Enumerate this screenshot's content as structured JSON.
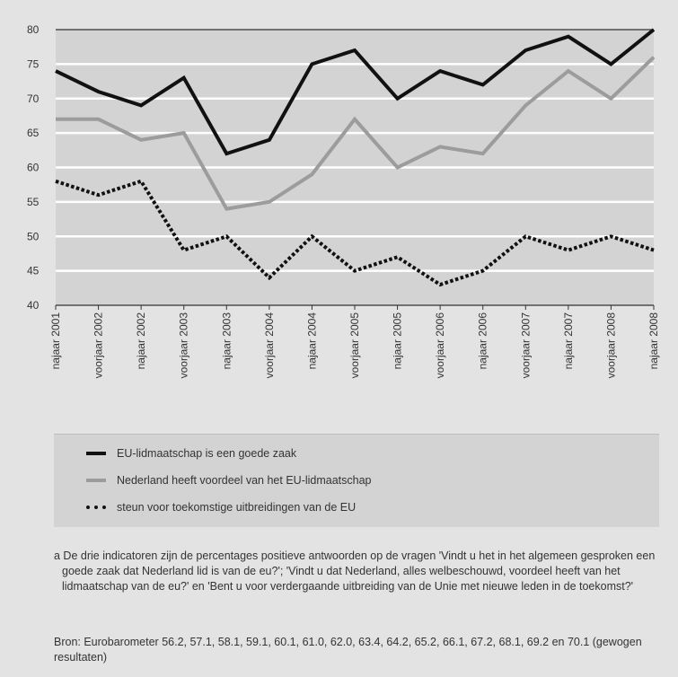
{
  "chart_data": {
    "type": "line",
    "categories": [
      "najaar 2001",
      "voorjaar 2002",
      "najaar 2002",
      "voorjaar 2003",
      "najaar 2003",
      "voorjaar 2004",
      "najaar 2004",
      "voorjaar 2005",
      "najaar 2005",
      "voorjaar 2006",
      "najaar 2006",
      "voorjaar 2007",
      "najaar 2007",
      "voorjaar 2008",
      "najaar 2008"
    ],
    "ylim": [
      40,
      80
    ],
    "yticks": [
      40,
      45,
      50,
      55,
      60,
      65,
      70,
      75,
      80
    ],
    "grid": true,
    "legend_position": "bottom",
    "series": [
      {
        "name": "EU-lidmaatschap is een goede zaak",
        "color": "#111111",
        "style": "solid",
        "values": [
          74,
          71,
          69,
          73,
          62,
          64,
          75,
          77,
          70,
          74,
          72,
          77,
          79,
          75,
          80
        ]
      },
      {
        "name": "Nederland heeft voordeel van het EU-lidmaatschap",
        "color": "#9c9c9c",
        "style": "solid",
        "values": [
          67,
          67,
          64,
          65,
          54,
          55,
          59,
          67,
          60,
          63,
          62,
          69,
          74,
          70,
          76
        ]
      },
      {
        "name": "steun voor toekomstige uitbreidingen van de EU",
        "color": "#111111",
        "style": "dotted",
        "values": [
          58,
          56,
          58,
          48,
          50,
          44,
          50,
          45,
          47,
          43,
          45,
          50,
          48,
          50,
          48
        ]
      }
    ]
  },
  "footnote": "a De drie indicatoren zijn de percentages positieve antwoorden op de vragen 'Vindt u het in het algemeen gesproken een goede zaak dat Nederland lid is van de eu?'; 'Vindt u dat Nederland, alles welbeschouwd, voordeel heeft van het lidmaatschap van de eu?' en 'Bent u voor verdergaande uitbreiding van de Unie met nieuwe leden in de toekomst?'",
  "source": "Bron: Eurobarometer 56.2, 57.1, 58.1, 59.1, 60.1, 61.0, 62.0, 63.4, 64.2, 65.2, 66.1, 67.2, 68.1, 69.2 en 70.1 (gewogen resultaten)"
}
